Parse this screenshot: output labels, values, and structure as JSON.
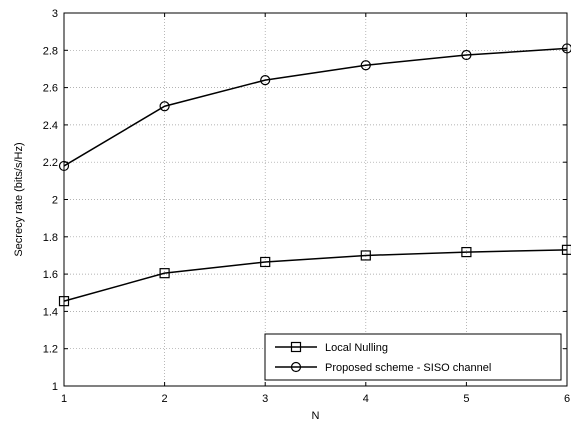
{
  "chart_data": {
    "type": "line",
    "xlabel": "N",
    "ylabel": "Secrecy rate (bits/s/Hz)",
    "x": [
      1,
      2,
      3,
      4,
      5,
      6
    ],
    "xlim": [
      1,
      6
    ],
    "ylim": [
      1,
      3
    ],
    "xticks": [
      "1",
      "2",
      "3",
      "4",
      "5",
      "6"
    ],
    "yticks": [
      "1",
      "1.2",
      "1.4",
      "1.6",
      "1.8",
      "2",
      "2.2",
      "2.4",
      "2.6",
      "2.8",
      "3"
    ],
    "ytick_values": [
      1,
      1.2,
      1.4,
      1.6,
      1.8,
      2,
      2.2,
      2.4,
      2.6,
      2.8,
      3
    ],
    "grid": true,
    "legend_position": "bottom-right",
    "series": [
      {
        "name": "Local Nulling",
        "marker": "square",
        "color": "#000000",
        "values": [
          1.455,
          1.605,
          1.665,
          1.7,
          1.718,
          1.73
        ]
      },
      {
        "name": "Proposed scheme - SISO channel",
        "marker": "circle",
        "color": "#000000",
        "values": [
          2.18,
          2.5,
          2.64,
          2.72,
          2.775,
          2.81
        ]
      }
    ]
  }
}
